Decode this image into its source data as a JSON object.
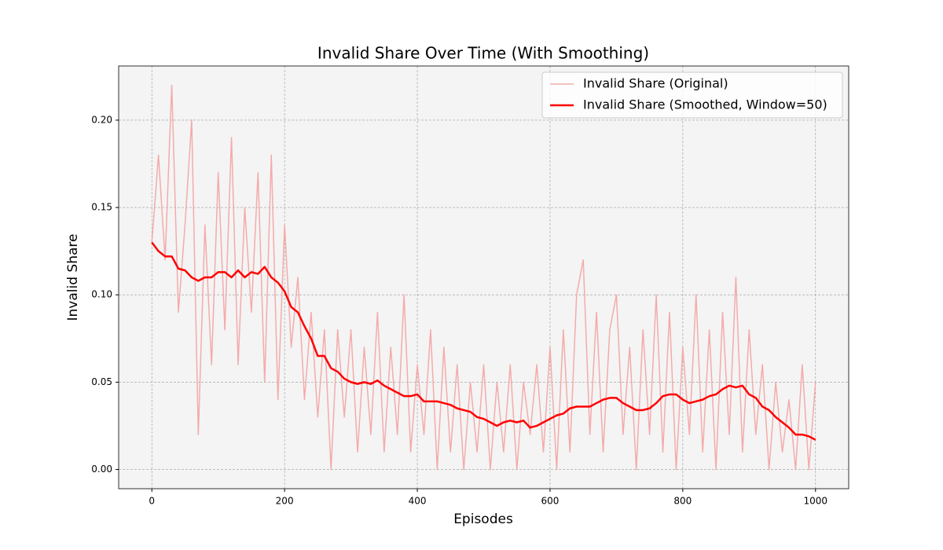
{
  "chart_data": {
    "type": "line",
    "title": "Invalid Share Over Time (With Smoothing)",
    "x_label": "Episodes",
    "y_label": "Invalid Share",
    "x": [
      0,
      10,
      20,
      30,
      40,
      50,
      60,
      70,
      80,
      90,
      100,
      110,
      120,
      130,
      140,
      150,
      160,
      170,
      180,
      190,
      200,
      210,
      220,
      230,
      240,
      250,
      260,
      270,
      280,
      290,
      300,
      310,
      320,
      330,
      340,
      350,
      360,
      370,
      380,
      390,
      400,
      410,
      420,
      430,
      440,
      450,
      460,
      470,
      480,
      490,
      500,
      510,
      520,
      530,
      540,
      550,
      560,
      570,
      580,
      590,
      600,
      610,
      620,
      630,
      640,
      650,
      660,
      670,
      680,
      690,
      700,
      710,
      720,
      730,
      740,
      750,
      760,
      770,
      780,
      790,
      800,
      810,
      820,
      830,
      840,
      850,
      860,
      870,
      880,
      890,
      900,
      910,
      920,
      930,
      940,
      950,
      960,
      970,
      980,
      990,
      1000
    ],
    "series": [
      {
        "name": "Invalid Share (Original)",
        "color": "#f4abab",
        "width": 1.5,
        "values": [
          0.13,
          0.18,
          0.12,
          0.22,
          0.09,
          0.14,
          0.2,
          0.02,
          0.14,
          0.06,
          0.17,
          0.08,
          0.19,
          0.06,
          0.15,
          0.09,
          0.17,
          0.05,
          0.18,
          0.04,
          0.14,
          0.07,
          0.11,
          0.04,
          0.09,
          0.03,
          0.08,
          0.0,
          0.08,
          0.03,
          0.08,
          0.01,
          0.07,
          0.02,
          0.09,
          0.01,
          0.07,
          0.02,
          0.1,
          0.01,
          0.06,
          0.02,
          0.08,
          0.0,
          0.07,
          0.01,
          0.06,
          0.0,
          0.05,
          0.01,
          0.06,
          0.0,
          0.05,
          0.01,
          0.06,
          0.0,
          0.05,
          0.02,
          0.06,
          0.01,
          0.07,
          0.0,
          0.08,
          0.01,
          0.1,
          0.12,
          0.02,
          0.09,
          0.01,
          0.08,
          0.1,
          0.02,
          0.07,
          0.0,
          0.08,
          0.02,
          0.1,
          0.01,
          0.09,
          0.0,
          0.07,
          0.02,
          0.1,
          0.01,
          0.08,
          0.0,
          0.09,
          0.02,
          0.11,
          0.01,
          0.08,
          0.02,
          0.06,
          0.0,
          0.05,
          0.01,
          0.04,
          0.0,
          0.06,
          0.0,
          0.05
        ]
      },
      {
        "name": "Invalid Share (Smoothed, Window=50)",
        "color": "#ff0000",
        "width": 2.5,
        "values": [
          0.13,
          0.125,
          0.122,
          0.122,
          0.115,
          0.114,
          0.11,
          0.108,
          0.11,
          0.11,
          0.113,
          0.113,
          0.11,
          0.114,
          0.11,
          0.113,
          0.112,
          0.116,
          0.11,
          0.107,
          0.102,
          0.093,
          0.09,
          0.082,
          0.075,
          0.065,
          0.065,
          0.058,
          0.056,
          0.052,
          0.05,
          0.049,
          0.05,
          0.049,
          0.051,
          0.048,
          0.046,
          0.044,
          0.042,
          0.042,
          0.043,
          0.039,
          0.039,
          0.039,
          0.038,
          0.037,
          0.035,
          0.034,
          0.033,
          0.03,
          0.029,
          0.027,
          0.025,
          0.027,
          0.028,
          0.027,
          0.028,
          0.024,
          0.025,
          0.027,
          0.029,
          0.031,
          0.032,
          0.035,
          0.036,
          0.036,
          0.036,
          0.038,
          0.04,
          0.041,
          0.041,
          0.038,
          0.036,
          0.034,
          0.034,
          0.035,
          0.038,
          0.042,
          0.043,
          0.043,
          0.04,
          0.038,
          0.039,
          0.04,
          0.042,
          0.043,
          0.046,
          0.048,
          0.047,
          0.048,
          0.043,
          0.041,
          0.036,
          0.034,
          0.03,
          0.027,
          0.024,
          0.02,
          0.02,
          0.019,
          0.017
        ]
      }
    ],
    "xlim": [
      -50,
      1050
    ],
    "xticks": [
      0,
      200,
      400,
      600,
      800,
      1000
    ],
    "ylim": [
      -0.011,
      0.231
    ],
    "yticks": [
      {
        "value": 0,
        "label": "0.00"
      },
      {
        "value": 0.05,
        "label": "0.05"
      },
      {
        "value": 0.1,
        "label": "0.10"
      },
      {
        "value": 0.15,
        "label": "0.15"
      },
      {
        "value": 0.2,
        "label": "0.20"
      }
    ],
    "grid": true,
    "legend": "upper right",
    "background": "#f4f4f4"
  }
}
